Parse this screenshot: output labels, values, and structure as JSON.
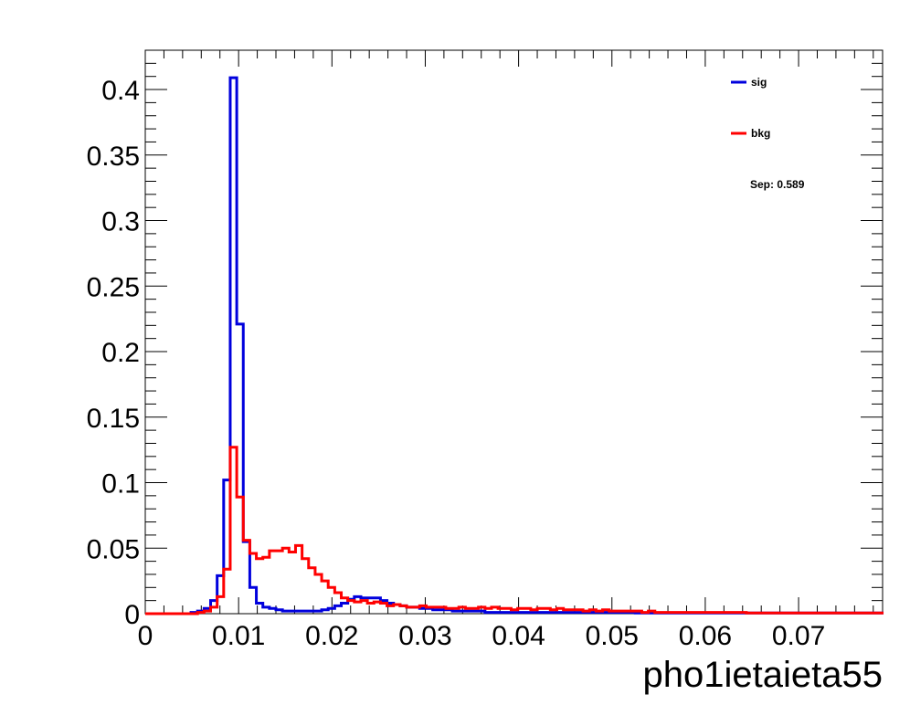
{
  "chart_data": {
    "type": "step-histogram",
    "xlabel": "pho1ietaieta55",
    "ylabel": "",
    "xlim": [
      0,
      0.079
    ],
    "ylim": [
      0,
      0.43
    ],
    "x_ticks": [
      "0",
      "0.01",
      "0.02",
      "0.03",
      "0.04",
      "0.05",
      "0.06",
      "0.07"
    ],
    "x_tick_values": [
      0,
      0.01,
      0.02,
      0.03,
      0.04,
      0.05,
      0.06,
      0.07
    ],
    "y_ticks": [
      "0",
      "0.05",
      "0.1",
      "0.15",
      "0.2",
      "0.25",
      "0.3",
      "0.35",
      "0.4"
    ],
    "y_tick_values": [
      0,
      0.05,
      0.1,
      0.15,
      0.2,
      0.25,
      0.3,
      0.35,
      0.4
    ],
    "bin_edges_start": 0,
    "bin_width": 0.0007,
    "series": [
      {
        "name": "sig",
        "color": "#0000dd",
        "values": [
          0,
          0,
          0,
          0,
          0,
          0,
          0,
          0.001,
          0.002,
          0.004,
          0.01,
          0.029,
          0.102,
          0.409,
          0.221,
          0.055,
          0.02,
          0.008,
          0.005,
          0.004,
          0.003,
          0.002,
          0.002,
          0.002,
          0.002,
          0.002,
          0.002,
          0.003,
          0.004,
          0.006,
          0.008,
          0.011,
          0.013,
          0.012,
          0.012,
          0.012,
          0.01,
          0.008,
          0.007,
          0.006,
          0.005,
          0.005,
          0.004,
          0.004,
          0.003,
          0.003,
          0.003,
          0.002,
          0.002,
          0.002,
          0.002,
          0.002,
          0.001,
          0.001,
          0.001,
          0.001,
          0.001,
          0.001,
          0.001,
          0.001,
          0.001,
          0.001,
          0.001,
          0.001,
          0.001,
          0.001,
          0.001,
          0.001,
          0.001,
          0.001,
          0.001,
          0.001,
          0.001,
          0.001,
          0.001,
          0.0005,
          0.0005,
          0.0005,
          0.0005,
          0.0005,
          0.0005,
          0.0005,
          0.0005,
          0.0005,
          0.0005,
          0.0005,
          0.0005,
          0.0005,
          0.0005,
          0.0005,
          0.0005,
          0.0005,
          0.0005,
          0.0005,
          0.0005,
          0.0005,
          0.0005,
          0.0005,
          0.0005,
          0.0005,
          0.0005,
          0.0005,
          0.0005,
          0.0005,
          0.0005,
          0.0005,
          0.0005,
          0.0005,
          0.0005,
          0.0005,
          0.0005,
          0.0005,
          0.0005
        ]
      },
      {
        "name": "bkg",
        "color": "#ff0000",
        "values": [
          0,
          0,
          0,
          0,
          0,
          0,
          0,
          0,
          0.001,
          0.002,
          0.005,
          0.013,
          0.034,
          0.127,
          0.089,
          0.056,
          0.046,
          0.042,
          0.043,
          0.048,
          0.048,
          0.05,
          0.047,
          0.052,
          0.042,
          0.035,
          0.03,
          0.025,
          0.02,
          0.016,
          0.012,
          0.01,
          0.009,
          0.01,
          0.008,
          0.009,
          0.008,
          0.006,
          0.007,
          0.006,
          0.005,
          0.005,
          0.006,
          0.005,
          0.005,
          0.005,
          0.004,
          0.004,
          0.005,
          0.004,
          0.004,
          0.005,
          0.004,
          0.005,
          0.004,
          0.004,
          0.003,
          0.004,
          0.004,
          0.003,
          0.004,
          0.004,
          0.003,
          0.004,
          0.003,
          0.003,
          0.003,
          0.002,
          0.003,
          0.002,
          0.003,
          0.002,
          0.002,
          0.002,
          0.002,
          0.002,
          0.001,
          0.002,
          0.001,
          0.001,
          0.001,
          0.001,
          0.001,
          0.001,
          0.001,
          0.001,
          0.001,
          0.001,
          0.001,
          0.001,
          0.001,
          0.001,
          0.0005,
          0.0005,
          0.0005,
          0.0005,
          0.0005,
          0.0005,
          0.0005,
          0.0005,
          0.0005,
          0.0005,
          0.0005,
          0.0005,
          0.0005,
          0.0005,
          0.0005,
          0.0005,
          0.0005,
          0.0005,
          0.0005,
          0.0005,
          0.0005
        ]
      }
    ],
    "legend": {
      "placement": "top-right",
      "entries": [
        {
          "label": "sig",
          "color": "#0000dd"
        },
        {
          "label": "bkg",
          "color": "#ff0000"
        }
      ],
      "annotation": "Sep: 0.589"
    }
  }
}
